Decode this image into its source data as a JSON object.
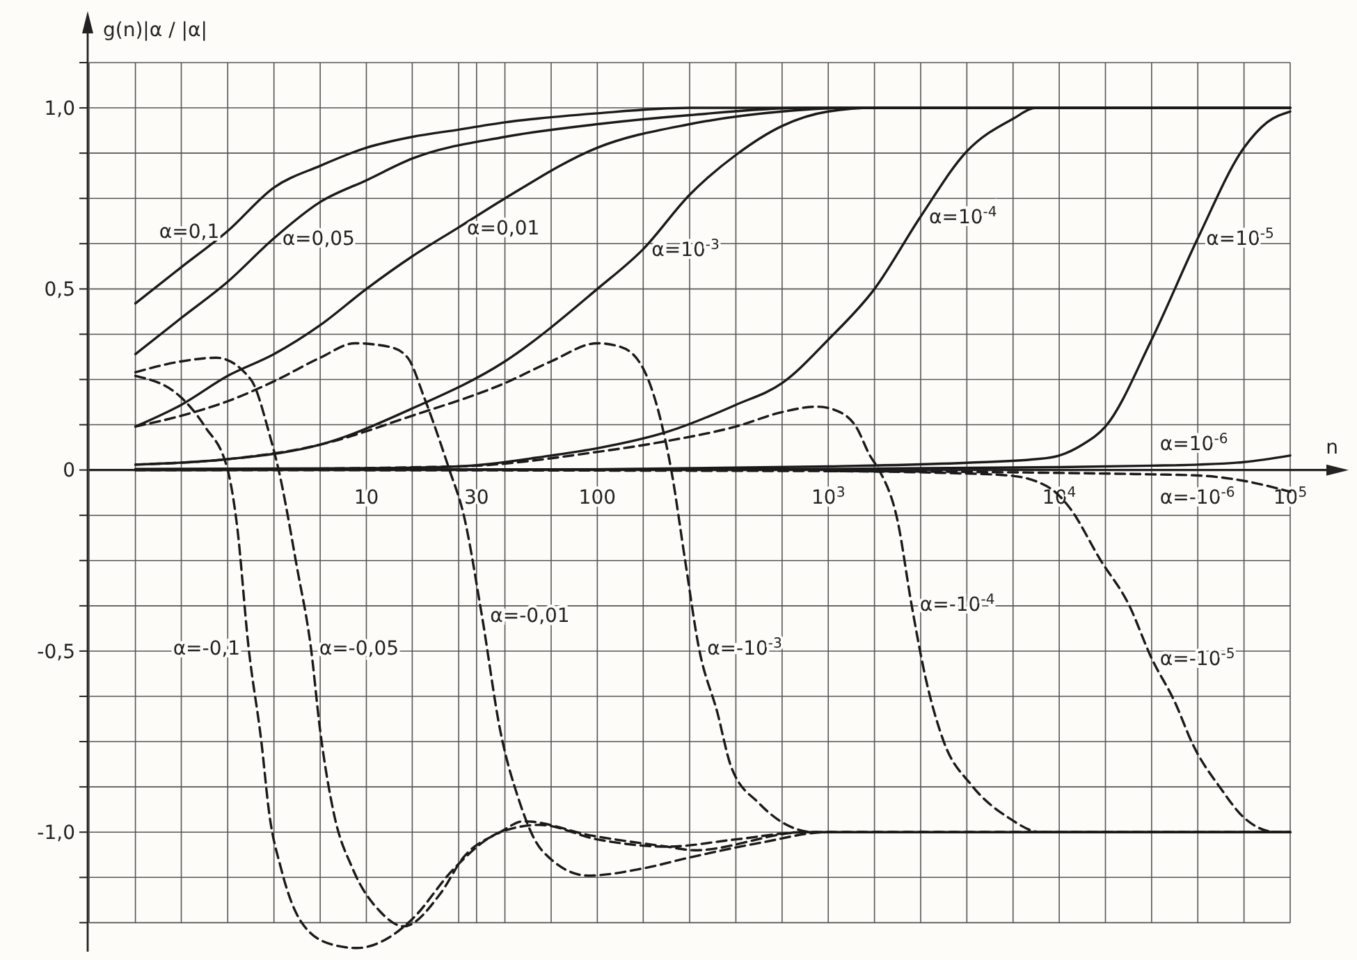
{
  "chart_data": {
    "type": "line",
    "ylabel": "g(n)|α / |α|",
    "xlabel": "n",
    "log": "x",
    "grid": true,
    "xlim": [
      0.63,
      100000
    ],
    "ylim": [
      -1.33,
      1.125
    ],
    "xticks": [
      {
        "value": 0.63,
        "label": null
      },
      {
        "value": 1,
        "label": null
      },
      {
        "value": 1.58,
        "label": null
      },
      {
        "value": 2.51,
        "label": null
      },
      {
        "value": 3.98,
        "label": null
      },
      {
        "value": 6.31,
        "label": null
      },
      10,
      {
        "value": 15.8,
        "label": null
      },
      {
        "value": 25.1,
        "label": null
      },
      30,
      {
        "value": 39.8,
        "label": null
      },
      {
        "value": 63.1,
        "label": null
      },
      100,
      {
        "value": 158,
        "label": null
      },
      {
        "value": 251,
        "label": null
      },
      {
        "value": 398,
        "label": null
      },
      {
        "value": 631,
        "label": null
      },
      {
        "value": 1000,
        "label": "10$^{3}$"
      },
      {
        "value": 1585,
        "label": null
      },
      {
        "value": 2512,
        "label": null
      },
      {
        "value": 3981,
        "label": null
      },
      {
        "value": 6310,
        "label": null
      },
      {
        "value": 10000,
        "label": "10$^{4}$"
      },
      {
        "value": 15849,
        "label": null
      },
      {
        "value": 25119,
        "label": null
      },
      {
        "value": 39811,
        "label": null
      },
      {
        "value": 63096,
        "label": null
      },
      {
        "value": 100000,
        "label": "10$^{5}$"
      }
    ],
    "yticks": [
      {
        "value": -1.25,
        "label": null
      },
      {
        "value": -1.125,
        "label": null
      },
      {
        "value": -1,
        "label": "-1,0"
      },
      {
        "value": -0.875,
        "label": null
      },
      {
        "value": -0.75,
        "label": null
      },
      {
        "value": -0.625,
        "label": null
      },
      {
        "value": -0.5,
        "label": "-0,5"
      },
      {
        "value": -0.375,
        "label": null
      },
      {
        "value": -0.25,
        "label": null
      },
      {
        "value": -0.125,
        "label": null
      },
      0,
      {
        "value": 0.125,
        "label": null
      },
      {
        "value": 0.25,
        "label": null
      },
      {
        "value": 0.375,
        "label": null
      },
      {
        "value": 0.5,
        "label": "0,5"
      },
      {
        "value": 0.625,
        "label": null
      },
      {
        "value": 0.75,
        "label": null
      },
      {
        "value": 0.875,
        "label": null
      },
      {
        "value": 1,
        "label": "1,0"
      },
      {
        "value": 1.125,
        "label": null
      }
    ],
    "series": [
      {
        "color": "#1a1a1a",
        "line_style": "solid",
        "x": [
          1,
          1.58,
          2.51,
          3.98,
          6.31,
          10,
          15.8,
          25.1,
          39.8,
          100,
          251,
          100000
        ],
        "values": [
          0.46,
          0.56,
          0.66,
          0.78,
          0.84,
          0.89,
          0.92,
          0.94,
          0.96,
          0.985,
          1.0,
          1.0
        ]
      },
      {
        "color": "#1a1a1a",
        "line_style": "solid",
        "x": [
          1,
          1.58,
          2.51,
          3.98,
          6.31,
          10,
          15.8,
          39.8,
          100,
          251,
          794,
          100000
        ],
        "values": [
          0.32,
          0.42,
          0.52,
          0.64,
          0.74,
          0.8,
          0.86,
          0.92,
          0.955,
          0.98,
          1.0,
          1.0
        ]
      },
      {
        "color": "#1a1a1a",
        "line_style": "solid",
        "x": [
          1,
          1.58,
          2.51,
          3.98,
          6.31,
          10,
          15.8,
          25.1,
          39.8,
          100,
          251,
          631,
          1259,
          100000
        ],
        "values": [
          0.12,
          0.18,
          0.26,
          0.32,
          0.4,
          0.5,
          0.59,
          0.67,
          0.75,
          0.89,
          0.955,
          0.99,
          1.0,
          1.0
        ]
      },
      {
        "color": "#1a1a1a",
        "line_style": "solid",
        "x": [
          1,
          2.51,
          6.31,
          15.8,
          39.8,
          100,
          158,
          251,
          398,
          631,
          1000,
          1585,
          100000
        ],
        "values": [
          0.015,
          0.03,
          0.07,
          0.17,
          0.3,
          0.5,
          0.61,
          0.76,
          0.87,
          0.95,
          0.99,
          1.0,
          1.0
        ]
      },
      {
        "color": "#1a1a1a",
        "line_style": "solid",
        "x": [
          1,
          10,
          25.1,
          63.1,
          100,
          200,
          398,
          631,
          1000,
          1585,
          2512,
          3981,
          6310,
          7943,
          100000
        ],
        "values": [
          0.003,
          0.005,
          0.01,
          0.04,
          0.06,
          0.105,
          0.18,
          0.24,
          0.36,
          0.5,
          0.7,
          0.88,
          0.97,
          1.0,
          1.0
        ]
      },
      {
        "color": "#1a1a1a",
        "line_style": "solid",
        "x": [
          1,
          100,
          1000,
          3981,
          7943,
          10000,
          12589,
          15849,
          25119,
          39811,
          63096,
          79433,
          100000
        ],
        "values": [
          0,
          0.002,
          0.01,
          0.02,
          0.03,
          0.04,
          0.07,
          0.12,
          0.36,
          0.64,
          0.89,
          0.96,
          0.99
        ]
      },
      {
        "color": "#1a1a1a",
        "line_style": "solid",
        "x": [
          1,
          1000,
          10000,
          25119,
          39811,
          63096,
          100000
        ],
        "values": [
          0,
          0.003,
          0.008,
          0.012,
          0.015,
          0.022,
          0.04
        ]
      },
      {
        "color": "#1a1a1a",
        "line_style": "dashed",
        "x": [
          1,
          1.58,
          2,
          2.51,
          2.75,
          3.09,
          3.51,
          3.8,
          4.27,
          5.25,
          7.08,
          9.12,
          12.6,
          15.8,
          24,
          38,
          56.2,
          100,
          200,
          398,
          794,
          100000
        ],
        "values": [
          0.26,
          0.2,
          0.12,
          0,
          -0.15,
          -0.49,
          -0.75,
          -0.95,
          -1.1,
          -1.25,
          -1.31,
          -1.32,
          -1.29,
          -1.24,
          -1.1,
          -1.0,
          -0.98,
          -1.02,
          -1.04,
          -1.02,
          -1.0,
          -1.0
        ]
      },
      {
        "color": "#1a1a1a",
        "line_style": "dashed",
        "x": [
          1,
          1.58,
          2.24,
          3.16,
          3.8,
          4.17,
          5.01,
          5.75,
          6.31,
          7.24,
          8.71,
          11.5,
          14.5,
          20.9,
          26.3,
          38,
          47.9,
          95.5,
          200,
          263,
          794,
          100000
        ],
        "values": [
          0.27,
          0.3,
          0.31,
          0.25,
          0.1,
          0,
          -0.27,
          -0.49,
          -0.72,
          -0.95,
          -1.1,
          -1.22,
          -1.26,
          -1.17,
          -1.07,
          -1.0,
          -0.97,
          -1.01,
          -1.04,
          -1.05,
          -1.0,
          -1.0
        ]
      },
      {
        "color": "#1a1a1a",
        "line_style": "dashed",
        "x": [
          1,
          1.58,
          2.51,
          3.98,
          6.31,
          8.91,
          12.6,
          15.1,
          17.8,
          22.9,
          26.3,
          31.6,
          38,
          45.7,
          57.5,
          91.2,
          158,
          251,
          501,
          1000,
          100000
        ],
        "values": [
          0.12,
          0.15,
          0.19,
          0.245,
          0.31,
          0.35,
          0.34,
          0.31,
          0.2,
          0,
          -0.12,
          -0.4,
          -0.72,
          -0.91,
          -1.05,
          -1.12,
          -1.1,
          -1.07,
          -1.03,
          -1.0,
          -1.0
        ]
      },
      {
        "color": "#1a1a1a",
        "line_style": "dashed",
        "x": [
          1,
          2.51,
          6.31,
          15.8,
          39.8,
          63.1,
          100,
          126,
          158,
          186,
          209,
          240,
          275,
          331,
          380,
          501,
          661,
          871,
          100000
        ],
        "values": [
          0.015,
          0.03,
          0.07,
          0.15,
          0.24,
          0.3,
          0.35,
          0.34,
          0.28,
          0.15,
          0,
          -0.25,
          -0.49,
          -0.67,
          -0.82,
          -0.92,
          -0.98,
          -1.0,
          -1.0
        ]
      },
      {
        "color": "#1a1a1a",
        "line_style": "dashed",
        "x": [
          1,
          25.1,
          100,
          200,
          398,
          631,
          891,
          1122,
          1318,
          1514,
          1660,
          1995,
          2291,
          2630,
          3162,
          4169,
          6026,
          8318,
          100000
        ],
        "values": [
          0,
          0.01,
          0.05,
          0.08,
          0.12,
          0.16,
          0.175,
          0.16,
          0.12,
          0.04,
          0,
          -0.14,
          -0.37,
          -0.57,
          -0.75,
          -0.87,
          -0.96,
          -1.0,
          -1.0
        ]
      },
      {
        "color": "#1a1a1a",
        "line_style": "dashed",
        "x": [
          1000,
          3162,
          6026,
          9120,
          10965,
          15136,
          19953,
          25119,
          31623,
          38019,
          50119,
          63096,
          87096,
          100000
        ],
        "values": [
          -0.003,
          -0.008,
          -0.015,
          -0.05,
          -0.1,
          -0.25,
          -0.37,
          -0.52,
          -0.64,
          -0.76,
          -0.88,
          -0.96,
          -1.0,
          -1.0
        ]
      },
      {
        "color": "#1a1a1a",
        "line_style": "dashed",
        "x": [
          1,
          1000,
          10000,
          25119,
          39811,
          63096,
          100000
        ],
        "values": [
          0,
          -0.003,
          -0.008,
          -0.012,
          -0.015,
          -0.03,
          -0.06
        ]
      }
    ],
    "annotations": [
      {
        "text": "α=0,1",
        "x": 2.51,
        "y": 0.66
      },
      {
        "text": "α=0,05",
        "x": 3.98,
        "y": 0.64
      },
      {
        "text": "α=0,01",
        "x": 25.1,
        "y": 0.67
      },
      {
        "text": "α=10$^{-3}$",
        "x": 158,
        "y": 0.61
      },
      {
        "text": "α=10$^{-4}$",
        "x": 2512,
        "y": 0.7
      },
      {
        "text": "α=10$^{-5}$",
        "x": 39811,
        "y": 0.64
      },
      {
        "text": "α=10$^{-6}$",
        "x": 25119,
        "y": 0.012
      },
      {
        "text": "α=-0,1",
        "x": 3.09,
        "y": -0.49
      },
      {
        "text": "α=-0,05",
        "x": 5.75,
        "y": -0.49
      },
      {
        "text": "α=-0,01",
        "x": 31.6,
        "y": -0.4
      },
      {
        "text": "α=-10$^{-3}$",
        "x": 275,
        "y": -0.49
      },
      {
        "text": "α=-10$^{-4}$",
        "x": 2291,
        "y": -0.37
      },
      {
        "text": "α=-10$^{-5}$",
        "x": 25119,
        "y": -0.52
      },
      {
        "text": "α=-10$^{-6}$",
        "x": 25119,
        "y": -0.012
      }
    ]
  }
}
